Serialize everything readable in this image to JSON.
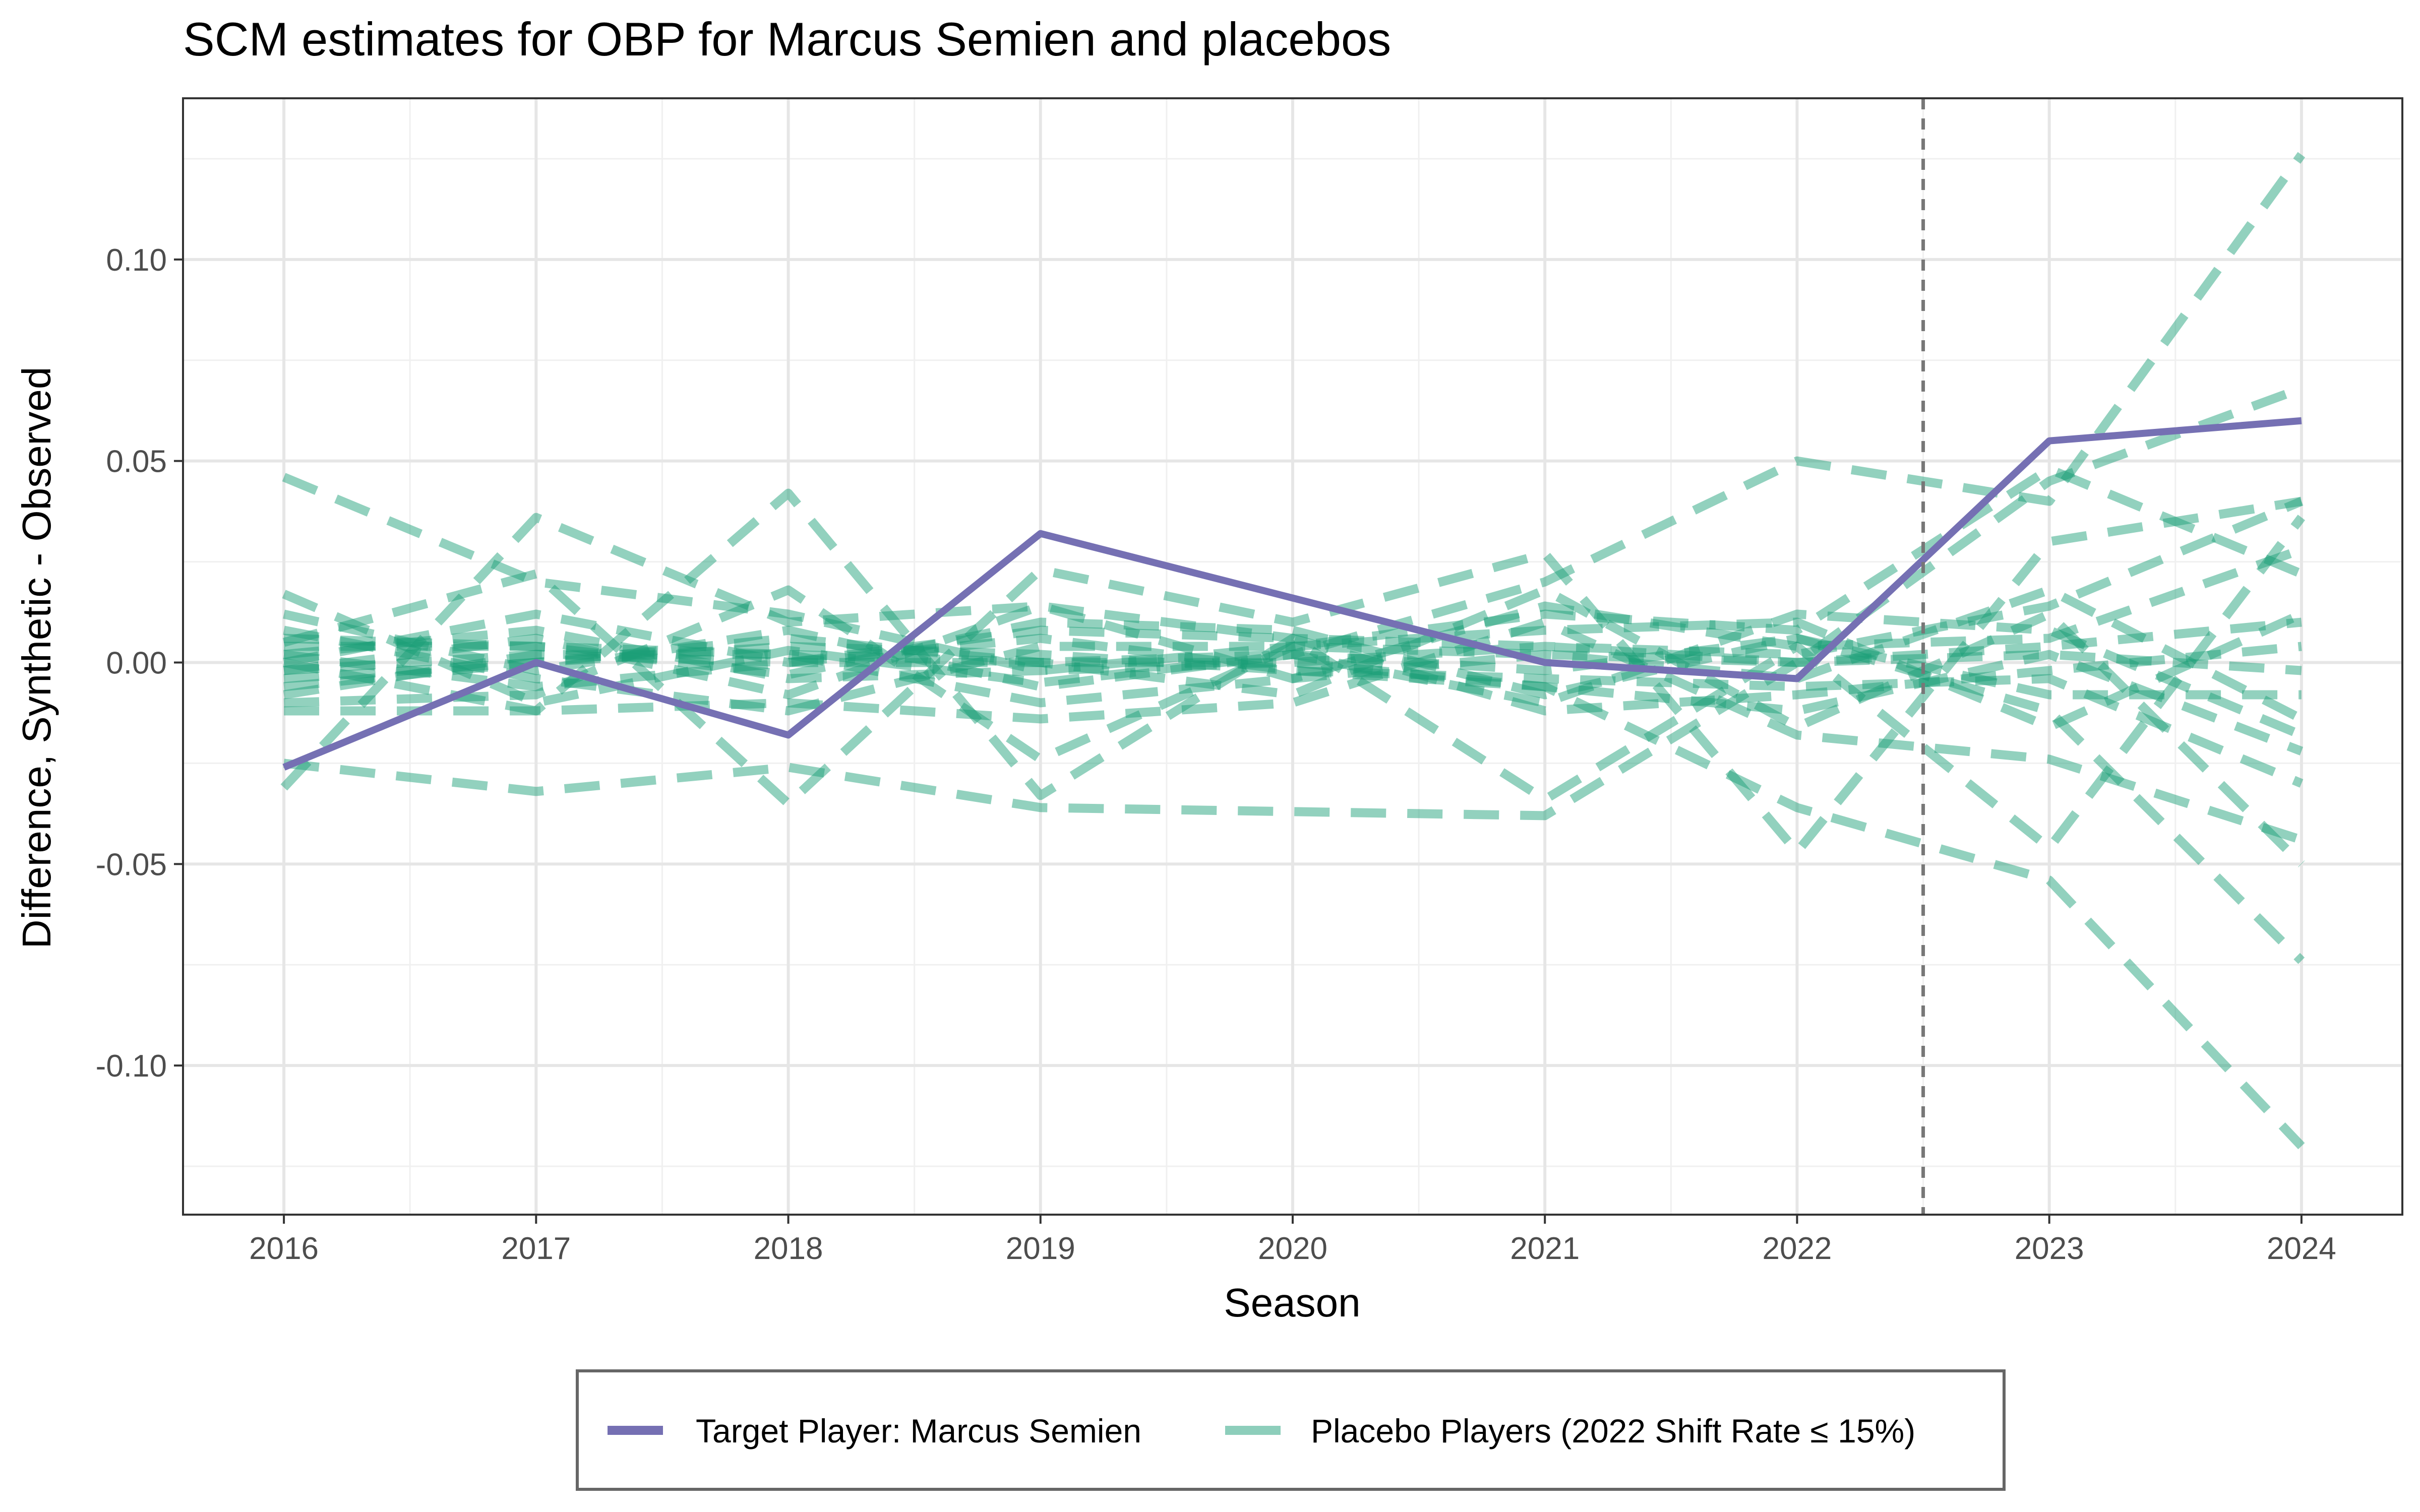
{
  "chart_data": {
    "type": "line",
    "title": "SCM estimates for OBP for Marcus Semien and placebos",
    "xlabel": "Season",
    "ylabel": "Difference, Synthetic - Observed",
    "x": [
      2016,
      2017,
      2018,
      2019,
      2020,
      2021,
      2022,
      2023,
      2024
    ],
    "x_ticks": [
      "2016",
      "2017",
      "2018",
      "2019",
      "2020",
      "2021",
      "2022",
      "2023",
      "2024"
    ],
    "y_ticks": [
      "0.10",
      "0.05",
      "0.00",
      "-0.05",
      "-0.10"
    ],
    "y_tick_values": [
      0.1,
      0.05,
      0.0,
      -0.05,
      -0.1
    ],
    "xlim": [
      2015.6,
      2024.4
    ],
    "ylim": [
      -0.137,
      0.14
    ],
    "grid": true,
    "vline": {
      "x": 2022.5,
      "style": "dashed"
    },
    "legend": {
      "position": "bottom",
      "entries": [
        {
          "label": "Target Player: Marcus Semien",
          "color": "#7570b3",
          "style": "solid"
        },
        {
          "label": "Placebo Players (2022 Shift Rate ≤ 15%)",
          "color": "#1b9e77",
          "style": "dashed"
        }
      ]
    },
    "target": {
      "values": [
        -0.026,
        0.0,
        -0.018,
        0.032,
        0.016,
        0.0,
        -0.004,
        0.055,
        0.06
      ],
      "color": "#7570b3"
    },
    "placebos": {
      "color": "#1b9e77",
      "values": [
        [
          0.046,
          0.02,
          0.012,
          -0.002,
          0.004,
          0.002,
          0.0,
          0.002,
          -0.002
        ],
        [
          -0.031,
          0.036,
          0.01,
          0.014,
          0.006,
          0.004,
          0.0,
          0.004,
          0.01
        ],
        [
          0.017,
          -0.01,
          0.003,
          -0.005,
          0.002,
          0.02,
          0.05,
          0.04,
          0.126
        ],
        [
          -0.025,
          -0.032,
          -0.026,
          -0.036,
          -0.037,
          -0.038,
          0.0,
          0.045,
          0.068
        ],
        [
          0.005,
          0.022,
          -0.035,
          0.023,
          0.01,
          0.027,
          -0.047,
          0.03,
          0.04
        ],
        [
          -0.012,
          -0.012,
          0.042,
          -0.033,
          0.006,
          -0.034,
          0.004,
          -0.046,
          0.036
        ],
        [
          -0.002,
          0.002,
          0.0,
          0.006,
          -0.002,
          -0.006,
          -0.036,
          -0.054,
          -0.12
        ],
        [
          0.006,
          0.004,
          -0.003,
          0.01,
          0.008,
          -0.008,
          0.006,
          -0.012,
          -0.074
        ],
        [
          -0.01,
          -0.008,
          0.018,
          -0.024,
          0.004,
          0.012,
          0.008,
          0.048,
          0.022
        ],
        [
          0.004,
          0.004,
          0.002,
          0.0,
          -0.008,
          0.018,
          -0.016,
          0.012,
          -0.05
        ],
        [
          -0.002,
          0.006,
          -0.008,
          0.014,
          -0.004,
          0.014,
          0.004,
          0.006,
          0.028
        ],
        [
          0.0,
          -0.012,
          -0.01,
          -0.014,
          -0.01,
          0.01,
          -0.018,
          -0.024,
          -0.044
        ],
        [
          0.012,
          -0.002,
          0.008,
          -0.006,
          0.002,
          -0.01,
          0.012,
          0.008,
          -0.018
        ],
        [
          -0.006,
          0.0,
          0.004,
          0.002,
          -0.002,
          -0.004,
          -0.006,
          -0.004,
          -0.03
        ],
        [
          0.002,
          0.008,
          -0.004,
          -0.002,
          0.0,
          0.004,
          0.002,
          0.014,
          0.04
        ],
        [
          0.0,
          0.012,
          0.0,
          0.0,
          0.002,
          -0.002,
          0.006,
          -0.008,
          -0.008
        ],
        [
          -0.004,
          0.0,
          0.006,
          0.0,
          0.0,
          -0.006,
          -0.012,
          0.002,
          -0.022
        ],
        [
          0.008,
          -0.004,
          -0.012,
          0.004,
          0.004,
          0.008,
          0.01,
          -0.016,
          0.012
        ],
        [
          -0.008,
          0.002,
          0.002,
          -0.01,
          -0.004,
          0.002,
          -0.004,
          0.018,
          -0.014
        ],
        [
          0.002,
          -0.006,
          0.0,
          0.008,
          0.006,
          -0.012,
          -0.008,
          -0.002,
          0.004
        ]
      ]
    }
  }
}
